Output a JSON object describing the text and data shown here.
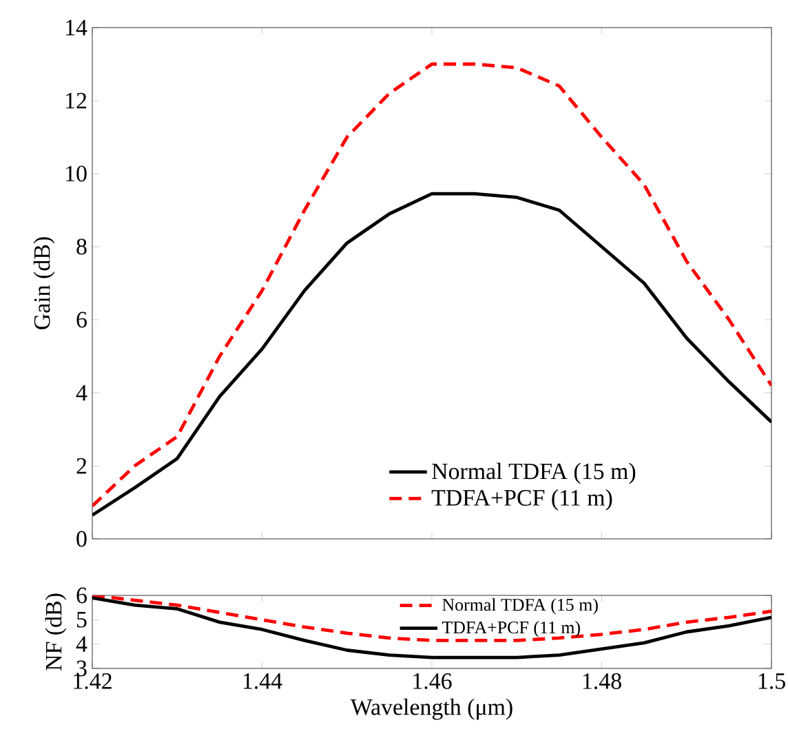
{
  "chart_data": [
    {
      "type": "line",
      "ylabel": "Gain (dB)",
      "x": [
        1.42,
        1.425,
        1.43,
        1.435,
        1.44,
        1.445,
        1.45,
        1.455,
        1.46,
        1.465,
        1.47,
        1.475,
        1.48,
        1.485,
        1.49,
        1.495,
        1.5
      ],
      "series": [
        {
          "name": "Normal TDFA (15 m)",
          "color": "#000000",
          "line_style": "solid",
          "values": [
            0.65,
            1.4,
            2.2,
            3.9,
            5.2,
            6.8,
            8.1,
            8.9,
            9.45,
            9.45,
            9.35,
            9.0,
            8.0,
            7.0,
            5.5,
            4.3,
            3.2
          ]
        },
        {
          "name": "TDFA+PCF (11 m)",
          "color": "#ff0000",
          "line_style": "dashed",
          "values": [
            0.9,
            2.0,
            2.8,
            5.0,
            6.8,
            9.0,
            11.0,
            12.2,
            13.0,
            13.0,
            12.9,
            12.4,
            11.0,
            9.7,
            7.6,
            6.0,
            4.2
          ]
        }
      ],
      "xlim": [
        1.42,
        1.5
      ],
      "xticks": [
        1.42,
        1.44,
        1.46,
        1.48,
        1.5
      ],
      "ylim": [
        0,
        14
      ],
      "yticks": [
        0,
        2,
        4,
        6,
        8,
        10,
        12,
        14
      ],
      "tick_labels": "y",
      "legend": "bottom",
      "grid": false
    },
    {
      "type": "line",
      "xlabel": "Wavelength (μm)",
      "ylabel": "NF (dB)",
      "x": [
        1.42,
        1.425,
        1.43,
        1.435,
        1.44,
        1.445,
        1.45,
        1.455,
        1.46,
        1.465,
        1.47,
        1.475,
        1.48,
        1.485,
        1.49,
        1.495,
        1.5
      ],
      "series": [
        {
          "name": "Normal TDFA (15 m)",
          "color": "#ff0000",
          "line_style": "dashed",
          "values": [
            6.0,
            5.8,
            5.6,
            5.3,
            5.0,
            4.7,
            4.45,
            4.25,
            4.15,
            4.15,
            4.15,
            4.25,
            4.4,
            4.6,
            4.9,
            5.1,
            5.35
          ]
        },
        {
          "name": "TDFA+PCF (11 m)",
          "color": "#000000",
          "line_style": "solid",
          "values": [
            5.9,
            5.6,
            5.45,
            4.9,
            4.6,
            4.15,
            3.75,
            3.55,
            3.45,
            3.45,
            3.45,
            3.55,
            3.8,
            4.05,
            4.5,
            4.75,
            5.1
          ]
        }
      ],
      "xlim": [
        1.42,
        1.5
      ],
      "xticks": [
        1.42,
        1.44,
        1.46,
        1.48,
        1.5
      ],
      "ylim": [
        3,
        6
      ],
      "yticks": [
        3,
        4,
        5,
        6
      ],
      "legend": "top",
      "grid": false
    }
  ]
}
